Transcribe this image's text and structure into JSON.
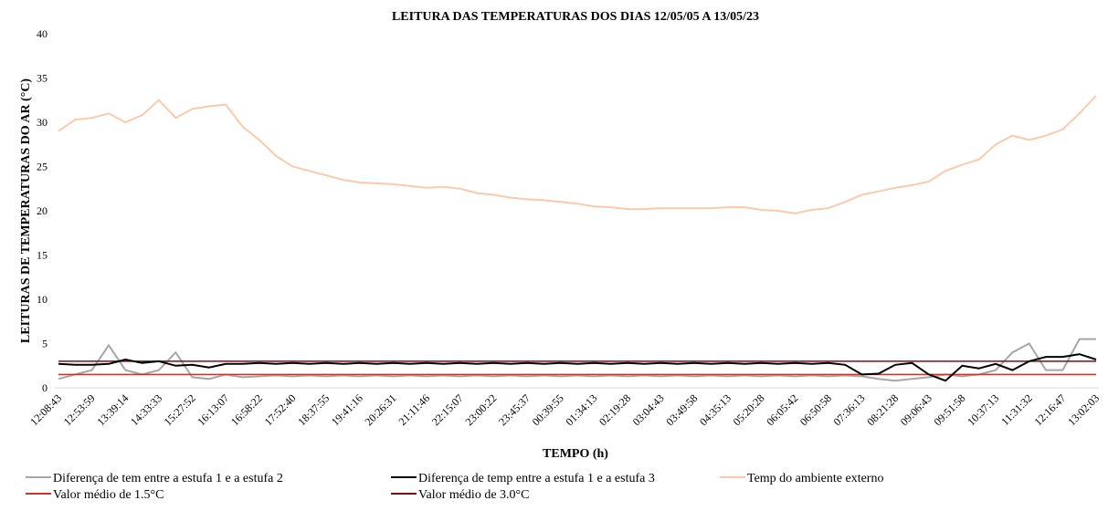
{
  "chart_data": {
    "type": "line",
    "title": "LEITURA DAS TEMPERATURAS DOS DIAS 12/05/05 A 13/05/23",
    "x_label": "TEMPO (h)",
    "y_label": "LEITURAS DE TEMPERATURAS DO AR (°C)",
    "categories": [
      "12:08:43",
      null,
      "12:53:59",
      null,
      "13:39:14",
      null,
      "14:33:33",
      null,
      "15:27:52",
      null,
      "16:13:07",
      null,
      "16:58:22",
      null,
      "17:52:40",
      null,
      "18:37:55",
      null,
      "19:41:16",
      null,
      "20:26:31",
      null,
      "21:11:46",
      null,
      "22:15:07",
      null,
      "23:00:22",
      null,
      "23:45:37",
      null,
      "00:39:55",
      null,
      "01:34:13",
      null,
      "02:19:28",
      null,
      "03:04:43",
      null,
      "03:49:58",
      null,
      "04:35:13",
      null,
      "05:20:28",
      null,
      "06:05:42",
      null,
      "06:50:58",
      null,
      "07:36:13",
      null,
      "08:21:28",
      null,
      "09:06:43",
      null,
      "09:51:58",
      null,
      "10:37:13",
      null,
      "11:31:32",
      null,
      "12:16:47",
      null,
      "13:02:03"
    ],
    "series": [
      {
        "name": "Diferença de tem entre a estufa 1 e a estufa 2",
        "color": "#a6a6a6",
        "values": [
          1,
          1.5,
          2,
          4.8,
          2,
          1.5,
          2,
          4,
          1.2,
          1,
          1.5,
          1.2,
          1.3,
          1.4,
          1.3,
          1.4,
          1.3,
          1.4,
          1.3,
          1.4,
          1.3,
          1.4,
          1.3,
          1.4,
          1.3,
          1.4,
          1.3,
          1.4,
          1.3,
          1.4,
          1.3,
          1.4,
          1.3,
          1.4,
          1.3,
          1.4,
          1.3,
          1.4,
          1.3,
          1.4,
          1.3,
          1.4,
          1.3,
          1.4,
          1.3,
          1.4,
          1.3,
          1.4,
          1.3,
          1,
          0.8,
          1,
          1.2,
          1.5,
          1.3,
          1.5,
          2,
          4,
          5,
          2,
          2,
          5.5,
          5.5
        ]
      },
      {
        "name": "Diferença de temp entre a estufa 1 e a estufa 3",
        "color": "#000000",
        "values": [
          2.7,
          2.6,
          2.6,
          2.7,
          3.2,
          2.8,
          3,
          2.5,
          2.6,
          2.3,
          2.7,
          2.7,
          2.8,
          2.7,
          2.8,
          2.7,
          2.8,
          2.7,
          2.8,
          2.7,
          2.8,
          2.7,
          2.8,
          2.7,
          2.8,
          2.7,
          2.8,
          2.7,
          2.8,
          2.7,
          2.8,
          2.7,
          2.8,
          2.7,
          2.8,
          2.7,
          2.8,
          2.7,
          2.8,
          2.7,
          2.8,
          2.7,
          2.8,
          2.7,
          2.8,
          2.7,
          2.8,
          2.6,
          1.5,
          1.6,
          2.6,
          2.8,
          1.5,
          0.8,
          2.5,
          2.2,
          2.7,
          2,
          3,
          3.5,
          3.5,
          3.8,
          3.2
        ]
      },
      {
        "name": "Temp do ambiente externo",
        "color": "#f8cbad",
        "values": [
          29,
          30.3,
          30.5,
          31,
          30,
          30.8,
          32.5,
          30.5,
          31.5,
          31.8,
          32,
          29.5,
          28,
          26.2,
          25,
          24.5,
          24,
          23.5,
          23.2,
          23.1,
          23,
          22.8,
          22.6,
          22.7,
          22.5,
          22,
          21.8,
          21.5,
          21.3,
          21.2,
          21,
          20.8,
          20.5,
          20.4,
          20.2,
          20.2,
          20.3,
          20.3,
          20.3,
          20.3,
          20.4,
          20.4,
          20.1,
          20,
          19.7,
          20.1,
          20.3,
          21,
          21.8,
          22.2,
          22.6,
          22.9,
          23.3,
          24.5,
          25.2,
          25.8,
          27.5,
          28.5,
          28,
          28.5,
          29.2,
          31,
          33
        ]
      },
      {
        "name": "Valor médio de 1.5°C",
        "color": "#c0392b",
        "values": [
          1.5,
          1.5,
          1.5,
          1.5,
          1.5,
          1.5,
          1.5,
          1.5,
          1.5,
          1.5,
          1.5,
          1.5,
          1.5,
          1.5,
          1.5,
          1.5,
          1.5,
          1.5,
          1.5,
          1.5,
          1.5,
          1.5,
          1.5,
          1.5,
          1.5,
          1.5,
          1.5,
          1.5,
          1.5,
          1.5,
          1.5,
          1.5,
          1.5,
          1.5,
          1.5,
          1.5,
          1.5,
          1.5,
          1.5,
          1.5,
          1.5,
          1.5,
          1.5,
          1.5,
          1.5,
          1.5,
          1.5,
          1.5,
          1.5,
          1.5,
          1.5,
          1.5,
          1.5,
          1.5,
          1.5,
          1.5,
          1.5,
          1.5,
          1.5,
          1.5,
          1.5,
          1.5,
          1.5
        ]
      },
      {
        "name": "Valor médio de 3.0°C",
        "color": "#7b1010",
        "values": [
          3,
          3,
          3,
          3,
          3,
          3,
          3,
          3,
          3,
          3,
          3,
          3,
          3,
          3,
          3,
          3,
          3,
          3,
          3,
          3,
          3,
          3,
          3,
          3,
          3,
          3,
          3,
          3,
          3,
          3,
          3,
          3,
          3,
          3,
          3,
          3,
          3,
          3,
          3,
          3,
          3,
          3,
          3,
          3,
          3,
          3,
          3,
          3,
          3,
          3,
          3,
          3,
          3,
          3,
          3,
          3,
          3,
          3,
          3,
          3,
          3,
          3,
          3
        ]
      }
    ],
    "ylim": [
      0,
      40
    ],
    "yticks": [
      0,
      5,
      10,
      15,
      20,
      25,
      30,
      35,
      40
    ],
    "grid": false
  }
}
